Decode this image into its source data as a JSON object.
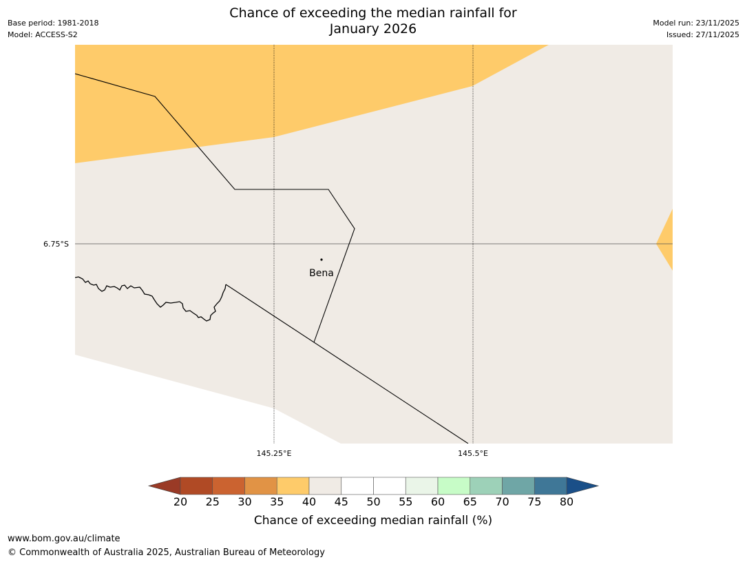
{
  "header": {
    "title_line1": "Chance of exceeding the median rainfall for",
    "title_line2": "January 2026",
    "base_period": "Base period: 1981-2018",
    "model": "Model: ACCESS-S2",
    "model_run": "Model run: 23/11/2025",
    "issued": "Issued: 27/11/2025"
  },
  "map": {
    "latitude_label": "6.75°S",
    "longitude_labels": [
      "145.25°E",
      "145.5°E"
    ],
    "place": {
      "name": "Bena"
    },
    "colors": {
      "band_35_40": "#fecb6a",
      "band_40_45": "#f0ebe5",
      "gridline": "#000000",
      "border": "#000000"
    }
  },
  "colorbar": {
    "title": "Chance of exceeding median rainfall (%)",
    "tick_labels": [
      "20",
      "25",
      "30",
      "35",
      "40",
      "45",
      "50",
      "55",
      "60",
      "65",
      "70",
      "75",
      "80"
    ],
    "under_color": "#9a3a26",
    "over_color": "#1a4f88",
    "colors": [
      "#b04a25",
      "#cb6330",
      "#e19345",
      "#fecb6a",
      "#f0ebe5",
      "#ffffff",
      "#ffffff",
      "#eaf5e8",
      "#c7fcc7",
      "#9dd1b8",
      "#6fa6a6",
      "#3f7797"
    ]
  },
  "footer": {
    "url": "www.bom.gov.au/climate",
    "copyright": "© Commonwealth of Australia 2025, Australian Bureau of Meteorology"
  }
}
